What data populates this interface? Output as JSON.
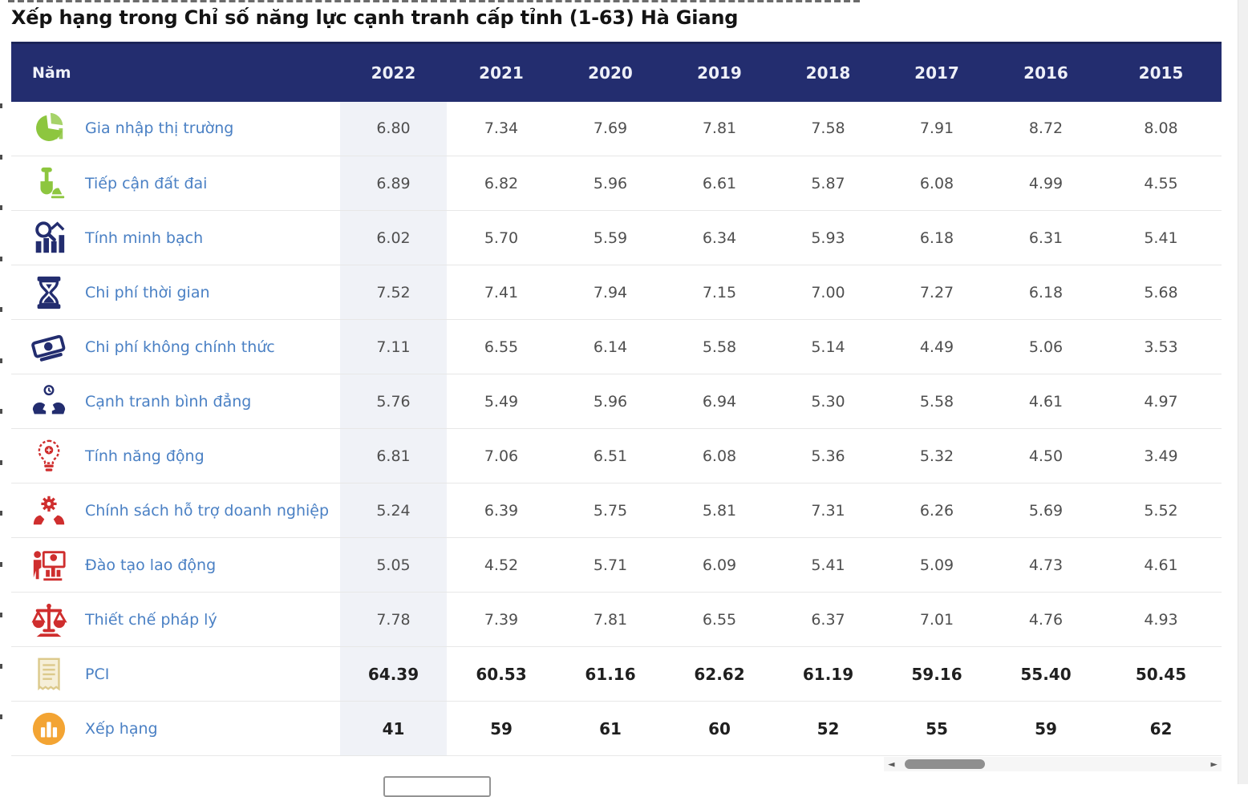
{
  "page": {
    "title": "Xếp hạng trong Chỉ số năng lực cạnh tranh cấp tỉnh (1-63) Hà Giang"
  },
  "table": {
    "year_header_label": "Năm",
    "years": [
      "2022",
      "2021",
      "2020",
      "2019",
      "2018",
      "2017",
      "2016",
      "2015"
    ],
    "highlighted_year": "2022",
    "rows": [
      {
        "label": "Gia nhập thị trường",
        "icon": "pie-chart",
        "icon_color": "#8dc63f",
        "emphasis": false,
        "values": [
          "6.80",
          "7.34",
          "7.69",
          "7.81",
          "7.58",
          "7.91",
          "8.72",
          "8.08"
        ]
      },
      {
        "label": "Tiếp cận đất đai",
        "icon": "shovel",
        "icon_color": "#8dc63f",
        "emphasis": false,
        "values": [
          "6.89",
          "6.82",
          "5.96",
          "6.61",
          "5.87",
          "6.08",
          "4.99",
          "4.55"
        ]
      },
      {
        "label": "Tính minh bạch",
        "icon": "magnifier-chart",
        "icon_color": "#232d6f",
        "emphasis": false,
        "values": [
          "6.02",
          "5.70",
          "5.59",
          "6.34",
          "5.93",
          "6.18",
          "6.31",
          "5.41"
        ]
      },
      {
        "label": "Chi phí thời gian",
        "icon": "hourglass",
        "icon_color": "#232d6f",
        "emphasis": false,
        "values": [
          "7.52",
          "7.41",
          "7.94",
          "7.15",
          "7.00",
          "7.27",
          "6.18",
          "5.68"
        ]
      },
      {
        "label": "Chi phí không chính thức",
        "icon": "money",
        "icon_color": "#232d6f",
        "emphasis": false,
        "values": [
          "7.11",
          "6.55",
          "6.14",
          "5.58",
          "5.14",
          "4.49",
          "5.06",
          "3.53"
        ]
      },
      {
        "label": "Cạnh tranh bình đẳng",
        "icon": "fair-competition",
        "icon_color": "#232d6f",
        "emphasis": false,
        "values": [
          "5.76",
          "5.49",
          "5.96",
          "6.94",
          "5.30",
          "5.58",
          "4.61",
          "4.97"
        ]
      },
      {
        "label": "Tính năng động",
        "icon": "lightbulb",
        "icon_color": "#cf2e2e",
        "emphasis": false,
        "values": [
          "6.81",
          "7.06",
          "6.51",
          "6.08",
          "5.36",
          "5.32",
          "4.50",
          "3.49"
        ]
      },
      {
        "label": "Chính sách hỗ trợ doanh nghiệp",
        "icon": "gear-hands",
        "icon_color": "#cf2e2e",
        "emphasis": false,
        "values": [
          "5.24",
          "6.39",
          "5.75",
          "5.81",
          "7.31",
          "6.26",
          "5.69",
          "5.52"
        ]
      },
      {
        "label": "Đào tạo lao động",
        "icon": "training",
        "icon_color": "#cf2e2e",
        "emphasis": false,
        "values": [
          "5.05",
          "4.52",
          "5.71",
          "6.09",
          "5.41",
          "5.09",
          "4.73",
          "4.61"
        ]
      },
      {
        "label": "Thiết chế pháp lý",
        "icon": "justice-scales",
        "icon_color": "#cf2e2e",
        "emphasis": false,
        "values": [
          "7.78",
          "7.39",
          "7.81",
          "6.55",
          "6.37",
          "7.01",
          "4.76",
          "4.93"
        ]
      },
      {
        "label": "PCI",
        "icon": "document",
        "icon_color": "#dcc98b",
        "emphasis": true,
        "values": [
          "64.39",
          "60.53",
          "61.16",
          "62.62",
          "61.19",
          "59.16",
          "55.40",
          "50.45"
        ]
      },
      {
        "label": "Xếp hạng",
        "icon": "ranking",
        "icon_color": "#f3a433",
        "emphasis": true,
        "values": [
          "41",
          "59",
          "61",
          "60",
          "52",
          "55",
          "59",
          "62"
        ]
      }
    ]
  },
  "scrollbar": {
    "left_arrow": "◄",
    "right_arrow": "►"
  },
  "colors": {
    "header_bg": "#232d6f",
    "header_text": "#eef0f8",
    "link_blue": "#4a80c4",
    "highlight_column_bg": "#f0f2f7",
    "value_text": "#4f4f4f",
    "green_icon": "#8dc63f",
    "navy_icon": "#232d6f",
    "red_icon": "#cf2e2e",
    "orange_icon": "#f3a433"
  }
}
